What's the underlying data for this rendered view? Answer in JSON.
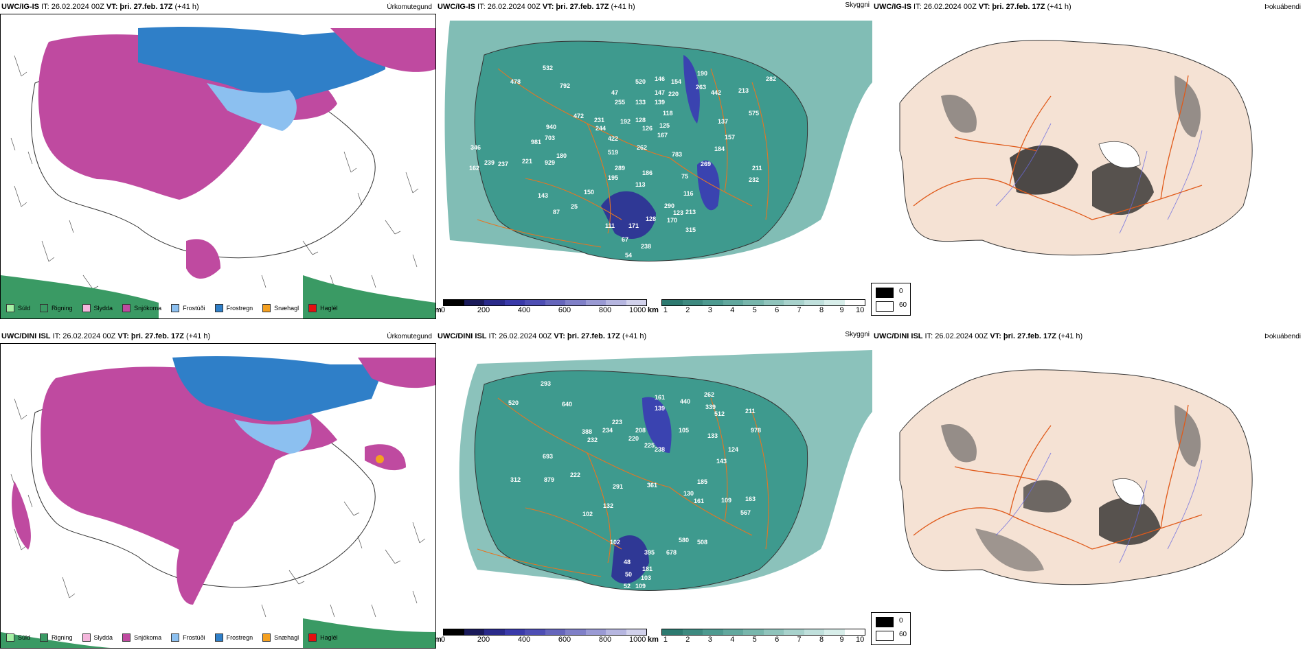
{
  "rows": [
    {
      "precip": {
        "title_model": "UWC/IG-IS",
        "title_it": " IT: 26.02.2024 00Z ",
        "title_vt_label": "VT:",
        "title_vt": " þri. 27.feb. 17Z",
        "title_lead": " (+41 h)",
        "label": "Úrkomutegund"
      },
      "vis": {
        "title_model": "UWC/IG-IS",
        "title_it": " IT: 26.02.2024 00Z ",
        "title_vt_label": "VT:",
        "title_vt": " þri. 27.feb. 17Z",
        "title_lead": " (+41 h)",
        "label": "Skyggni"
      },
      "fog": {
        "title_model": "UWC/IG-IS",
        "title_it": " IT: 26.02.2024 00Z ",
        "title_vt_label": "VT:",
        "title_vt": " þri. 27.feb. 17Z",
        "title_lead": " (+41 h)",
        "label": "Þokuábendi"
      },
      "vis_values": [
        "532",
        "478",
        "792",
        "47",
        "520",
        "146",
        "154",
        "190",
        "263",
        "442",
        "213",
        "282",
        "255",
        "133",
        "147",
        "220",
        "139",
        "118",
        "472",
        "231",
        "192",
        "128",
        "126",
        "125",
        "167",
        "940",
        "244",
        "422",
        "703",
        "981",
        "180",
        "519",
        "262",
        "783",
        "137",
        "575",
        "157",
        "184",
        "346",
        "239",
        "162",
        "237",
        "221",
        "929",
        "289",
        "186",
        "269",
        "195",
        "211",
        "113",
        "232",
        "75",
        "150",
        "143",
        "116",
        "25",
        "290",
        "213",
        "170",
        "123",
        "128",
        "315",
        "111",
        "171",
        "67",
        "238",
        "54",
        "36",
        "496",
        "87"
      ]
    },
    {
      "precip": {
        "title_model": "UWC/DINI ISL",
        "title_it": " IT: 26.02.2024 00Z ",
        "title_vt_label": "VT:",
        "title_vt": " þri. 27.feb. 17Z",
        "title_lead": " (+41 h)",
        "label": "Úrkomutegund"
      },
      "vis": {
        "title_model": "UWC/DINI ISL",
        "title_it": " IT: 26.02.2024 00Z ",
        "title_vt_label": "VT:",
        "title_vt": " þri. 27.feb. 17Z",
        "title_lead": " (+41 h)",
        "label": "Skyggni"
      },
      "fog": {
        "title_model": "UWC/DINI ISL",
        "title_it": " IT: 26.02.2024 00Z ",
        "title_vt_label": "VT:",
        "title_vt": " þri. 27.feb. 17Z",
        "title_lead": " (+41 h)",
        "label": "Þokuábendi"
      },
      "vis_values": [
        "293",
        "520",
        "640",
        "161",
        "262",
        "440",
        "339",
        "139",
        "512",
        "211",
        "978",
        "223",
        "388",
        "234",
        "232",
        "208",
        "105",
        "220",
        "225",
        "238",
        "133",
        "124",
        "693",
        "312",
        "879",
        "222",
        "291",
        "143",
        "185",
        "161",
        "109",
        "163",
        "567",
        "361",
        "130",
        "132",
        "102",
        "102",
        "395",
        "678",
        "580",
        "508",
        "48",
        "181",
        "50",
        "103",
        "52",
        "109"
      ]
    }
  ],
  "precip_legend": [
    {
      "label": "Súld",
      "color": "#a4f0a4"
    },
    {
      "label": "Rigning",
      "color": "#3a9a64"
    },
    {
      "label": "Slydda",
      "color": "#f4b6dc"
    },
    {
      "label": "Snjókoma",
      "color": "#bf4aa0"
    },
    {
      "label": "Frostúði",
      "color": "#8cc0f0"
    },
    {
      "label": "Frostregn",
      "color": "#2f7fc8"
    },
    {
      "label": "Snæhagl",
      "color": "#f4a020"
    },
    {
      "label": "Haglél",
      "color": "#e41010"
    }
  ],
  "scale_m": {
    "unit": "m",
    "ticks": [
      "0",
      "200",
      "400",
      "600",
      "800",
      "1000"
    ]
  },
  "scale_km": {
    "unit": "km",
    "ticks": [
      "1",
      "2",
      "3",
      "4",
      "5",
      "6",
      "7",
      "8",
      "9",
      "10"
    ]
  },
  "fog_legend": [
    "0",
    "60"
  ],
  "colors": {
    "snow": "#bf4aa0",
    "frz_rain": "#2f7fc8",
    "frz_driz": "#8cc0f0",
    "rain": "#3a9a64",
    "teal": "#3e9a8e",
    "land": "#f5e2d4",
    "road": "#e05a1a"
  }
}
